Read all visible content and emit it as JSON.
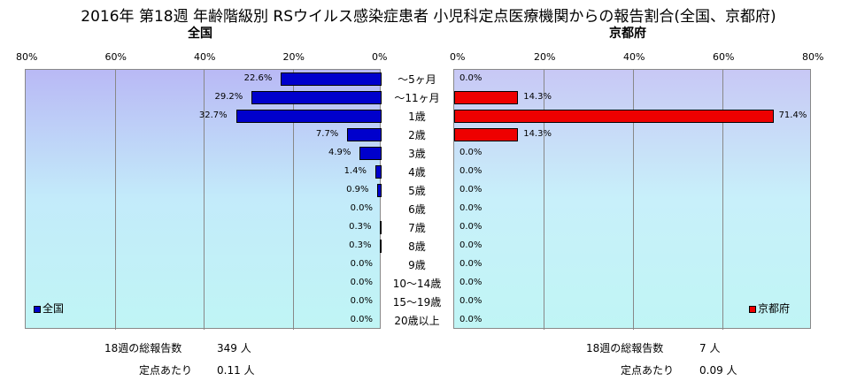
{
  "title": "2016年 第18週 年齢階級別 RSウイルス感染症患者 小児科定点医療機関からの報告割合(全国、京都府)",
  "chart_data": {
    "type": "bar",
    "orientation": "horizontal",
    "categories": [
      "～5ヶ月",
      "～11ヶ月",
      "1歳",
      "2歳",
      "3歳",
      "4歳",
      "5歳",
      "6歳",
      "7歳",
      "8歳",
      "9歳",
      "10～14歳",
      "15～19歳",
      "20歳以上"
    ],
    "series": [
      {
        "name": "全国",
        "subtitle": "全国",
        "color": "#0000cc",
        "values": [
          22.6,
          29.2,
          32.7,
          7.7,
          4.9,
          1.4,
          0.9,
          0.0,
          0.3,
          0.3,
          0.0,
          0.0,
          0.0,
          0.0
        ],
        "labels": [
          "22.6%",
          "29.2%",
          "32.7%",
          "7.7%",
          "4.9%",
          "1.4%",
          "0.9%",
          "0.0%",
          "0.3%",
          "0.3%",
          "0.0%",
          "0.0%",
          "0.0%",
          "0.0%"
        ],
        "xlim": [
          80,
          0
        ],
        "ticks": [
          "80%",
          "60%",
          "40%",
          "20%",
          "0%"
        ],
        "legend_placement": "bottom-left",
        "gradient": [
          "#b9b9f5",
          "#c3ebfa",
          "#c0f5f5"
        ]
      },
      {
        "name": "京都府",
        "subtitle": "京都府",
        "color": "#ee0000",
        "values": [
          0.0,
          14.3,
          71.4,
          14.3,
          0.0,
          0.0,
          0.0,
          0.0,
          0.0,
          0.0,
          0.0,
          0.0,
          0.0,
          0.0
        ],
        "labels": [
          "0.0%",
          "14.3%",
          "71.4%",
          "14.3%",
          "0.0%",
          "0.0%",
          "0.0%",
          "0.0%",
          "0.0%",
          "0.0%",
          "0.0%",
          "0.0%",
          "0.0%",
          "0.0%"
        ],
        "xlim": [
          0,
          80
        ],
        "ticks": [
          "0%",
          "20%",
          "40%",
          "60%",
          "80%"
        ],
        "legend_placement": "bottom-right",
        "gradient": [
          "#c8c8f5",
          "#c8f0fa",
          "#c0f5f5"
        ]
      }
    ],
    "grid": true
  },
  "summary": {
    "left": {
      "total_label": "18週の総報告数",
      "total_value": "349 人",
      "per_label": "定点あたり",
      "per_value": "0.11 人"
    },
    "right": {
      "total_label": "18週の総報告数",
      "total_value": "7 人",
      "per_label": "定点あたり",
      "per_value": "0.09 人"
    }
  }
}
